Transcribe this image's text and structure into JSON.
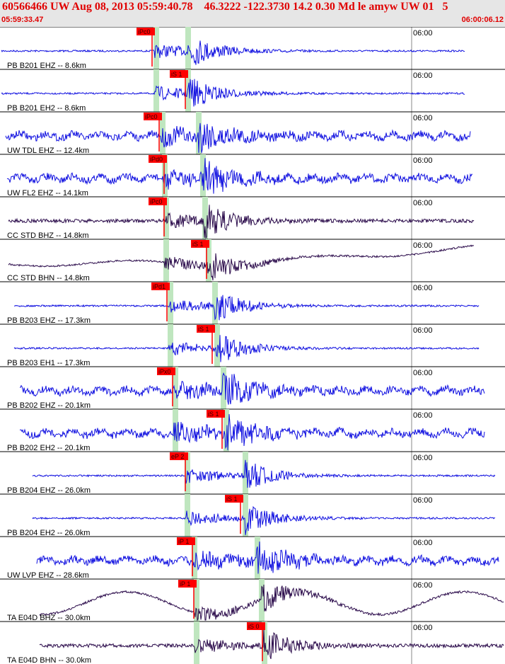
{
  "header": {
    "title": "60566466 UW Aug 08, 2013 05:59:40.78    46.3222 -122.3730 14.2 0.30 Md le amyw UW 01   5",
    "start_time": "05:59:33.47",
    "end_time": "06:00:06.12"
  },
  "colors": {
    "title": "#e00000",
    "header_bg": "#e6e6e6",
    "blue_trace": "#1010e0",
    "dark_trace": "#2a0a4a",
    "pick_flag": "#ff0000",
    "phase_band": "#bfe6bf",
    "grid": "#8a8a8a"
  },
  "time_axis": {
    "tick_label": "06:00"
  },
  "traces": [
    {
      "label": "PB B201 EHZ -- 8.6km",
      "pick": "iPc0",
      "color": "blue"
    },
    {
      "label": "PB B201 EH2 -- 8.6km",
      "pick": "iS 1",
      "color": "blue"
    },
    {
      "label": "UW TDL EHZ -- 12.4km",
      "pick": "iPc0",
      "color": "blue"
    },
    {
      "label": "UW FL2 EHZ -- 14.1km",
      "pick": "iPd0",
      "color": "blue"
    },
    {
      "label": "CC STD BHZ -- 14.8km",
      "pick": "iPc0",
      "color": "dark"
    },
    {
      "label": "CC STD BHN -- 14.8km",
      "pick": "iS 1",
      "color": "dark"
    },
    {
      "label": "PB B203 EHZ -- 17.3km",
      "pick": "iPd1",
      "color": "blue"
    },
    {
      "label": "PB B203 EH1 -- 17.3km",
      "pick": "iS 1",
      "color": "blue"
    },
    {
      "label": "PB B202 EHZ -- 20.1km",
      "pick": "iPx0",
      "color": "blue"
    },
    {
      "label": "PB B202 EH2 -- 20.1km",
      "pick": "iS 1",
      "color": "blue"
    },
    {
      "label": "PB B204 EHZ -- 26.0km",
      "pick": "eP 2",
      "color": "blue"
    },
    {
      "label": "PB B204 EH2 -- 26.0km",
      "pick": "iS 1",
      "color": "blue"
    },
    {
      "label": "UW LVP EHZ -- 28.6km",
      "pick": "iP 1",
      "color": "blue"
    },
    {
      "label": "TA E04D BHZ -- 30.0km",
      "pick": "iP 1",
      "color": "dark"
    },
    {
      "label": "TA E04D BHN -- 30.0km",
      "pick": "iS 0",
      "color": "dark"
    }
  ]
}
